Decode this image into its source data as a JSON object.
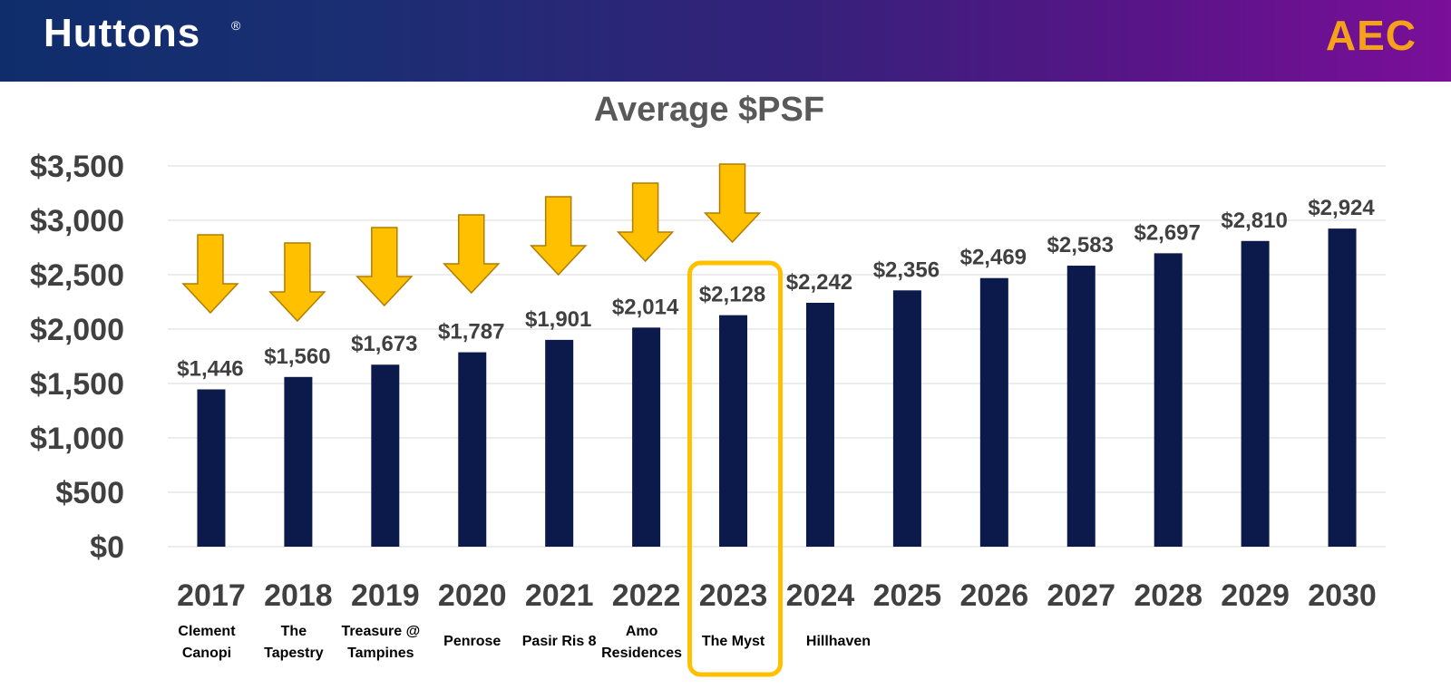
{
  "header": {
    "logo": "Huttons",
    "logo_mark": "®",
    "event_logo": "AEC"
  },
  "colors": {
    "bar": "#0c1a4b",
    "arrow": "#ffc000",
    "arrow_stroke": "#b07d00",
    "highlight": "#ffc000",
    "title": "#595959",
    "tick": "#404040",
    "grid": "#d9d9d9"
  },
  "chart_data": {
    "type": "bar",
    "title": "Average $PSF",
    "categories": [
      "2017",
      "2018",
      "2019",
      "2020",
      "2021",
      "2022",
      "2023",
      "2024",
      "2025",
      "2026",
      "2027",
      "2028",
      "2029",
      "2030"
    ],
    "project_labels": [
      [
        "Clement",
        "Canopi"
      ],
      [
        "The",
        "Tapestry"
      ],
      [
        "Treasure @",
        "Tampines"
      ],
      [
        "Penrose"
      ],
      [
        "Pasir Ris 8"
      ],
      [
        "Amo",
        "Residences"
      ],
      [
        "The Myst"
      ],
      [
        "Hillhaven"
      ],
      [],
      [],
      [],
      [],
      [],
      []
    ],
    "values": [
      1446,
      1560,
      1673,
      1787,
      1901,
      2014,
      2128,
      2242,
      2356,
      2469,
      2583,
      2697,
      2810,
      2924
    ],
    "value_labels": [
      "$1,446",
      "$1,560",
      "$1,673",
      "$1,787",
      "$1,901",
      "$2,014",
      "$2,128",
      "$2,242",
      "$2,356",
      "$2,469",
      "$2,583",
      "$2,697",
      "$2,810",
      "$2,924"
    ],
    "yticks": [
      0,
      500,
      1000,
      1500,
      2000,
      2500,
      3000,
      3500
    ],
    "ytick_labels": [
      "$0",
      "$500",
      "$1,000",
      "$1,500",
      "$2,000",
      "$2,500",
      "$3,000",
      "$3,500"
    ],
    "ylim": [
      0,
      3500
    ],
    "grid": true,
    "legend": false,
    "down_arrows_over": [
      "2017",
      "2018",
      "2019",
      "2020",
      "2021",
      "2022",
      "2023"
    ],
    "highlighted_category": "2023"
  }
}
